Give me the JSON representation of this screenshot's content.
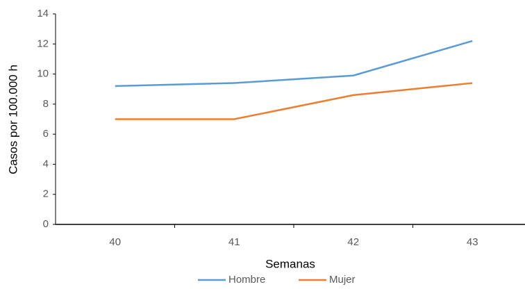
{
  "chart_data": {
    "type": "line",
    "x_label": "Semanas",
    "y_label": "Casos por 100.000 h",
    "categories": [
      "40",
      "41",
      "42",
      "43"
    ],
    "series": [
      {
        "name": "Hombre",
        "color": "#5b9bd5",
        "values": [
          9.2,
          9.4,
          9.9,
          12.2
        ]
      },
      {
        "name": "Mujer",
        "color": "#ed7d31",
        "values": [
          7.0,
          7.0,
          8.6,
          9.4
        ]
      }
    ],
    "ylim": [
      0,
      14
    ],
    "yticks": [
      0,
      2,
      4,
      6,
      8,
      10,
      12,
      14
    ],
    "grid": false,
    "legend": "bottom"
  }
}
